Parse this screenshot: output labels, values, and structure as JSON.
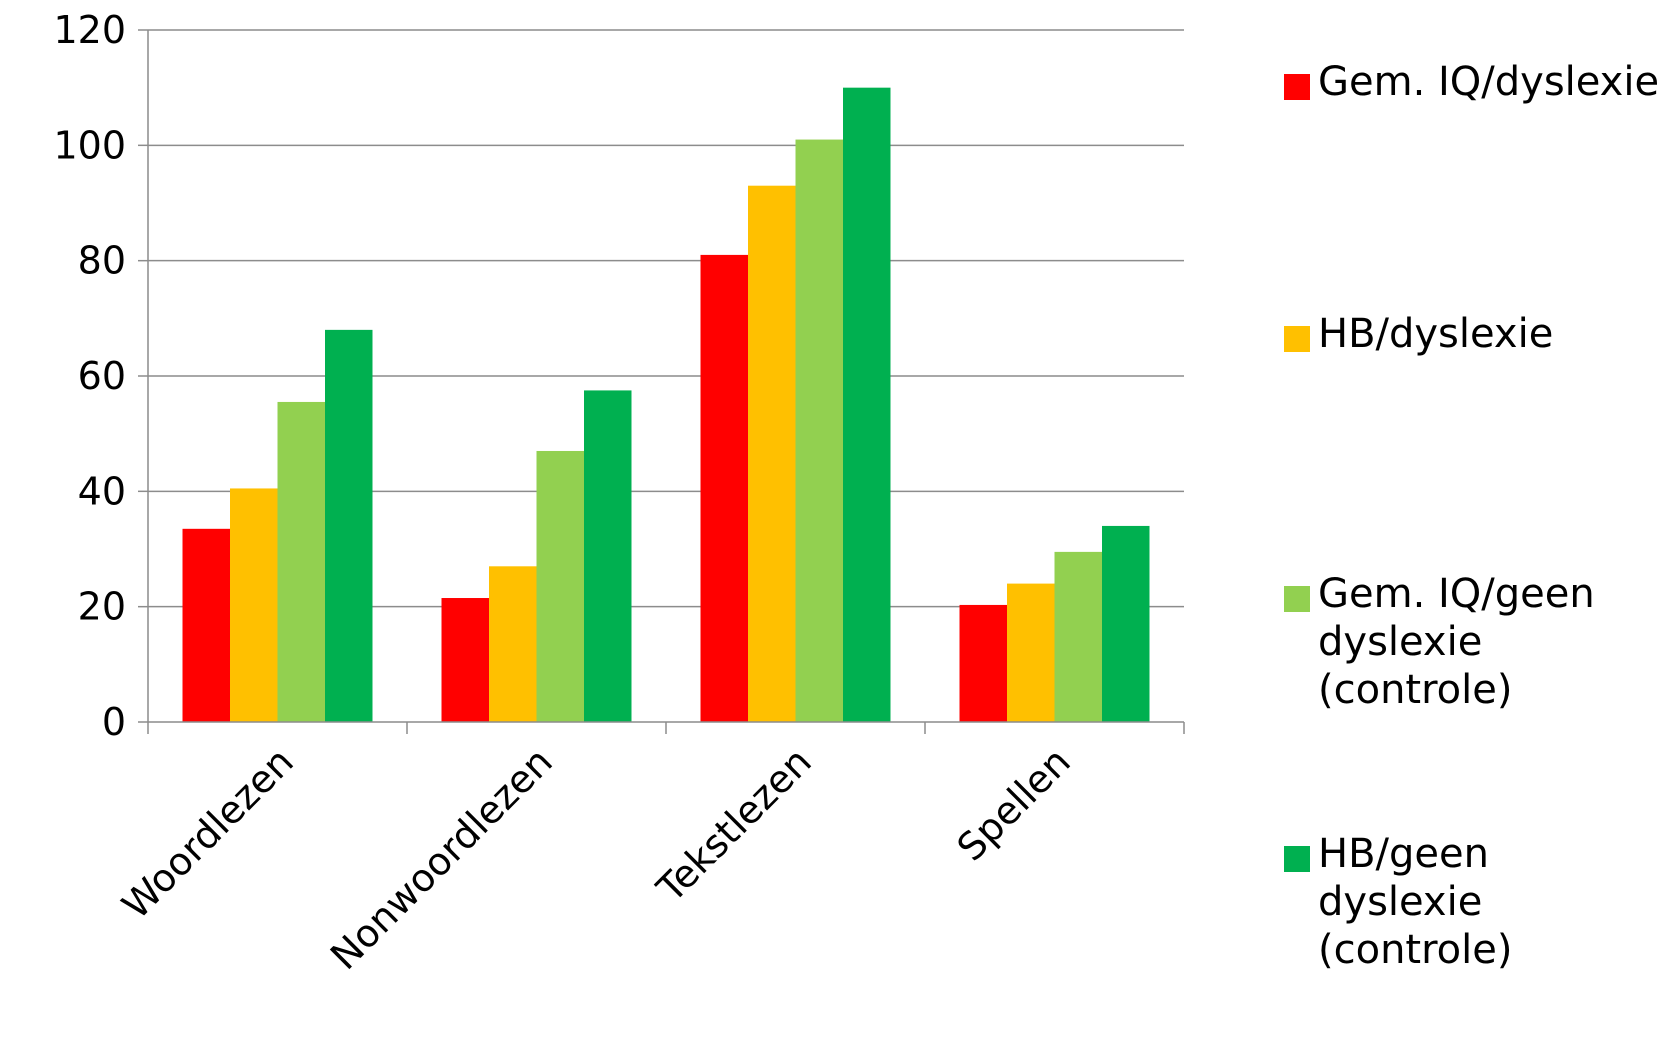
{
  "chart_data": {
    "type": "bar",
    "title": "",
    "xlabel": "",
    "ylabel": "",
    "ylim": [
      0,
      120
    ],
    "yticks": [
      "0",
      "20",
      "40",
      "60",
      "80",
      "100",
      "120"
    ],
    "grid": true,
    "legend_position": "right",
    "categories": [
      "Woordlezen",
      "Nonwoordlezen",
      "Tekstlezen",
      "Spellen"
    ],
    "series": [
      {
        "name": "Gem. IQ/dyslexie",
        "color": "#FF0000",
        "values": [
          33.5,
          21.5,
          81,
          20.3
        ]
      },
      {
        "name": "HB/dyslexie",
        "color": "#FFC000",
        "values": [
          40.5,
          27,
          93,
          24
        ]
      },
      {
        "name": "Gem. IQ/geen dyslexie (controle)",
        "color": "#92D050",
        "values": [
          55.5,
          47,
          101,
          29.5
        ]
      },
      {
        "name": "HB/geen dyslexie (controle)",
        "color": "#00B050",
        "values": [
          68,
          57.5,
          110,
          34
        ]
      }
    ]
  }
}
